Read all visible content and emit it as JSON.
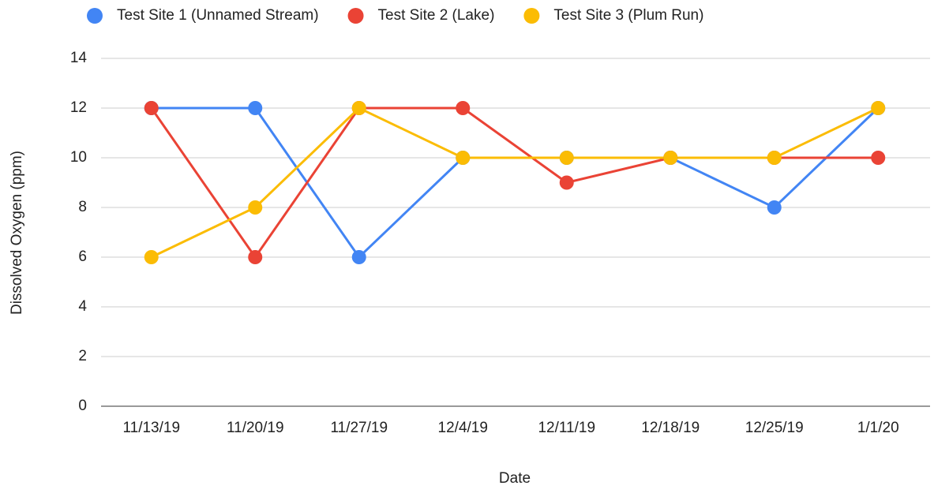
{
  "chart_data": {
    "type": "line",
    "x_label": "Date",
    "y_label": "Dissolved Oxygen (ppm)",
    "categories": [
      "11/13/19",
      "11/20/19",
      "11/27/19",
      "12/4/19",
      "12/11/19",
      "12/18/19",
      "12/25/19",
      "1/1/20"
    ],
    "series": [
      {
        "name": "Test Site 1 (Unnamed Stream)",
        "color": "#4285f4",
        "values": [
          12,
          12,
          6,
          10,
          10,
          10,
          8,
          12
        ]
      },
      {
        "name": "Test Site 2 (Lake)",
        "color": "#ea4335",
        "values": [
          12,
          6,
          12,
          12,
          9,
          10,
          10,
          10
        ]
      },
      {
        "name": "Test Site 3 (Plum Run)",
        "color": "#fbbc04",
        "values": [
          6,
          8,
          12,
          10,
          10,
          10,
          10,
          12
        ]
      }
    ],
    "ylim": [
      0,
      14
    ],
    "yticks": [
      0,
      2,
      4,
      6,
      8,
      10,
      12,
      14
    ],
    "grid": true,
    "legend": "top"
  }
}
